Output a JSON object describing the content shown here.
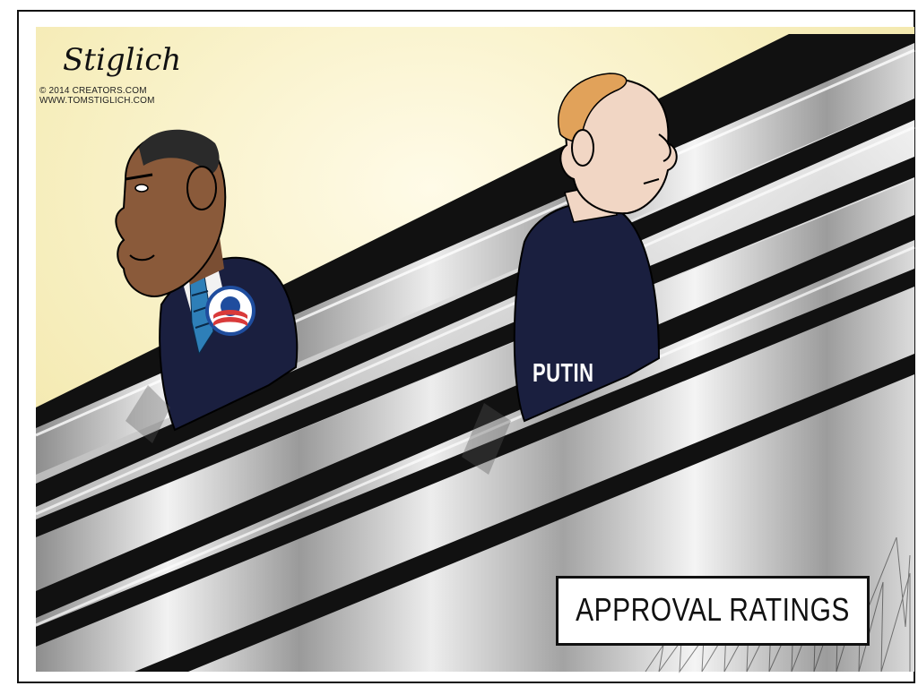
{
  "cartoon": {
    "signature": "Stiglich",
    "copyright": "© 2014 CREATORS.COM",
    "website": "WWW.TOMSTIGLICH.COM",
    "jacket_label": "PUTIN",
    "caption": "APPROVAL RATINGS"
  },
  "colors": {
    "sky_yellow": "#f7efc0",
    "steel": "#c9c9c9",
    "suit_navy": "#1a1f3f",
    "skin_dark": "#8a5a3a",
    "skin_light": "#f1d6c4",
    "hair_blond": "#e1a25a",
    "logo_red": "#d93a3a",
    "logo_blue": "#1f4d9e"
  }
}
